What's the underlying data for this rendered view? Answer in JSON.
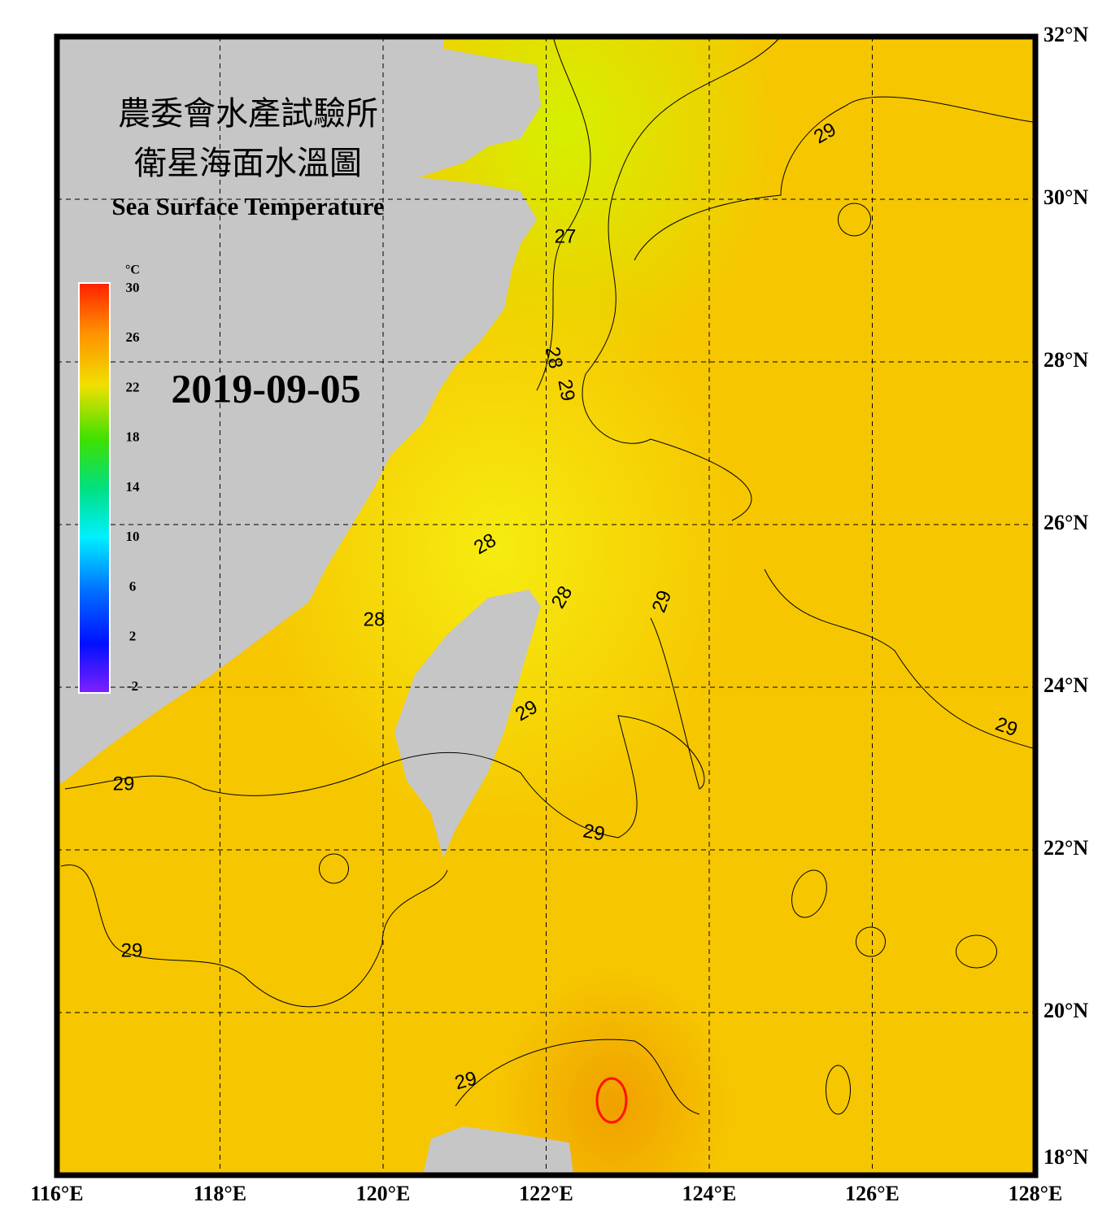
{
  "header": {
    "title_zh_1": "農委會水產試驗所",
    "title_zh_2": "衛星海面水溫圖",
    "title_en": "Sea Surface Temperature"
  },
  "date": "2019-09-05",
  "colorbar": {
    "unit": "°C",
    "ticks": [
      30,
      26,
      22,
      18,
      14,
      10,
      6,
      2,
      -2
    ]
  },
  "lon_labels": [
    {
      "value": 116,
      "label": "116°E"
    },
    {
      "value": 118,
      "label": "118°E"
    },
    {
      "value": 120,
      "label": "120°E"
    },
    {
      "value": 122,
      "label": "122°E"
    },
    {
      "value": 124,
      "label": "124°E"
    },
    {
      "value": 126,
      "label": "126°E"
    },
    {
      "value": 128,
      "label": "128°E"
    }
  ],
  "lat_labels": [
    {
      "value": 32,
      "label": "32°N"
    },
    {
      "value": 30,
      "label": "30°N"
    },
    {
      "value": 28,
      "label": "28°N"
    },
    {
      "value": 26,
      "label": "26°N"
    },
    {
      "value": 24,
      "label": "24°N"
    },
    {
      "value": 22,
      "label": "22°N"
    },
    {
      "value": 20,
      "label": "20°N"
    },
    {
      "value": 18,
      "label": "18°N"
    }
  ],
  "contour_labels": [
    "29",
    "27",
    "28",
    "29",
    "28",
    "28",
    "28",
    "29",
    "29",
    "29",
    "29",
    "29",
    "29",
    "29"
  ]
}
